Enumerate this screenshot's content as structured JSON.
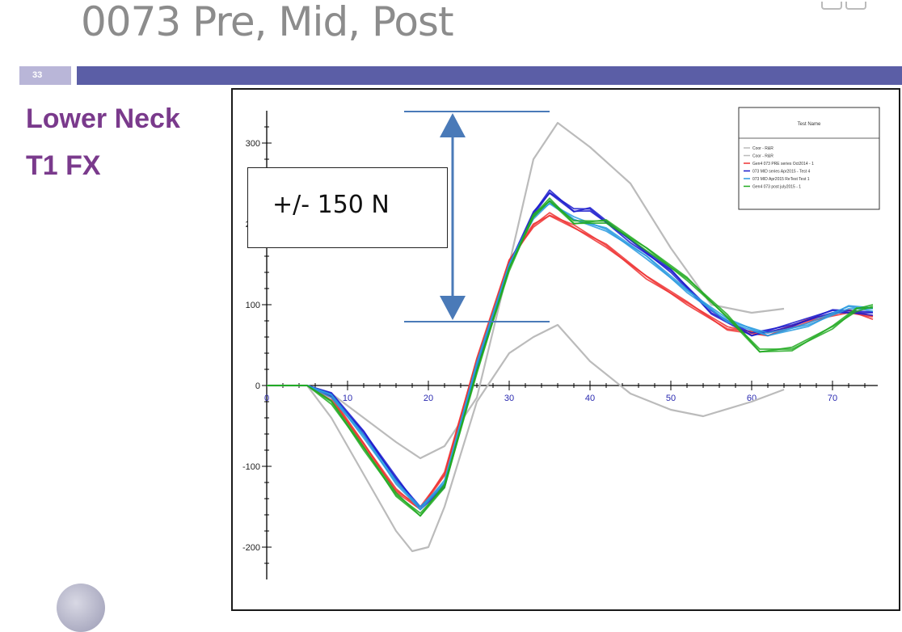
{
  "slide": {
    "title": "0073 Pre, Mid, Post",
    "number": "33",
    "side_title_line1": "Lower Neck",
    "side_title_line2": "T1 FX",
    "accent_bar_color": "#5b5ea6",
    "side_title_color": "#7a3a8c"
  },
  "annotation": {
    "text": "+/- 150 N"
  },
  "chart_data": {
    "type": "line",
    "xlim": [
      0,
      75
    ],
    "ylim": [
      -240,
      340
    ],
    "x_ticks": [
      "0",
      "10",
      "20",
      "30",
      "40",
      "50",
      "60",
      "70"
    ],
    "y_ticks": [
      "-200",
      "-100",
      "0",
      "100",
      "200",
      "300"
    ],
    "legend": {
      "title": "Test Name",
      "placement": "top-right",
      "entries": [
        {
          "label": "Coor - R&R",
          "color": "#bbbbbb"
        },
        {
          "label": "Coor - R&R",
          "color": "#bbbbbb"
        },
        {
          "label": "Gen4 073 PRE series Oct2014 - 1",
          "color": "#ee3333"
        },
        {
          "label": "073 MID series Apr2015 - Test 4",
          "color": "#1a1acc"
        },
        {
          "label": "073 MID Apr2015 ReTest Test 1",
          "color": "#2a9be0"
        },
        {
          "label": "Gen4 073 post july2015 - 1",
          "color": "#22aa22"
        }
      ]
    },
    "series": [
      {
        "name": "Coor - R&R",
        "color": "#bbbbbb",
        "x": [
          0,
          5,
          8,
          12,
          16,
          19,
          22,
          26,
          30,
          33,
          36,
          40,
          45,
          50,
          55,
          60,
          64
        ],
        "y": [
          0,
          0,
          -10,
          -40,
          -70,
          -90,
          -75,
          -15,
          150,
          280,
          325,
          295,
          250,
          170,
          100,
          90,
          95
        ]
      },
      {
        "name": "Coor - R&R",
        "color": "#bbbbbb",
        "x": [
          0,
          5,
          8,
          12,
          16,
          18,
          20,
          22,
          26,
          30,
          33,
          36,
          40,
          45,
          50,
          54,
          60,
          64
        ],
        "y": [
          0,
          0,
          -40,
          -110,
          -180,
          -205,
          -200,
          -150,
          -20,
          40,
          60,
          75,
          30,
          -10,
          -30,
          -38,
          -20,
          -5
        ]
      },
      {
        "name": "Gen4 073 PRE series Oct2014 - 1",
        "color": "#ee3333",
        "x": [
          0,
          5,
          8,
          12,
          16,
          19,
          22,
          26,
          30,
          33,
          35,
          38,
          42,
          47,
          52,
          57,
          62,
          67,
          72,
          75
        ],
        "y": [
          0,
          0,
          -15,
          -75,
          -130,
          -150,
          -110,
          30,
          155,
          200,
          210,
          195,
          175,
          135,
          100,
          70,
          65,
          80,
          90,
          85
        ]
      },
      {
        "name": "073 MID series Apr2015 - Test 4",
        "color": "#1a1acc",
        "x": [
          0,
          5,
          8,
          12,
          16,
          19,
          22,
          26,
          30,
          33,
          35,
          38,
          40,
          45,
          50,
          55,
          60,
          65,
          70,
          75
        ],
        "y": [
          0,
          0,
          -10,
          -60,
          -115,
          -150,
          -125,
          20,
          150,
          215,
          238,
          215,
          220,
          180,
          140,
          90,
          65,
          75,
          90,
          90
        ]
      },
      {
        "name": "073 MID Apr2015 ReTest Test 1",
        "color": "#2a9be0",
        "x": [
          0,
          5,
          8,
          12,
          16,
          19,
          22,
          26,
          30,
          33,
          35,
          38,
          42,
          47,
          52,
          57,
          62,
          67,
          72,
          75
        ],
        "y": [
          0,
          0,
          -12,
          -65,
          -120,
          -150,
          -120,
          25,
          150,
          210,
          225,
          205,
          195,
          160,
          115,
          80,
          65,
          75,
          95,
          95
        ]
      },
      {
        "name": "Gen4 073 post july2015 - 1",
        "color": "#22aa22",
        "x": [
          0,
          5,
          8,
          12,
          16,
          19,
          22,
          26,
          30,
          33,
          35,
          38,
          42,
          47,
          52,
          57,
          61,
          65,
          70,
          73,
          75
        ],
        "y": [
          0,
          0,
          -20,
          -80,
          -135,
          -158,
          -125,
          15,
          145,
          212,
          228,
          200,
          205,
          170,
          130,
          85,
          45,
          45,
          70,
          95,
          100
        ]
      }
    ]
  }
}
